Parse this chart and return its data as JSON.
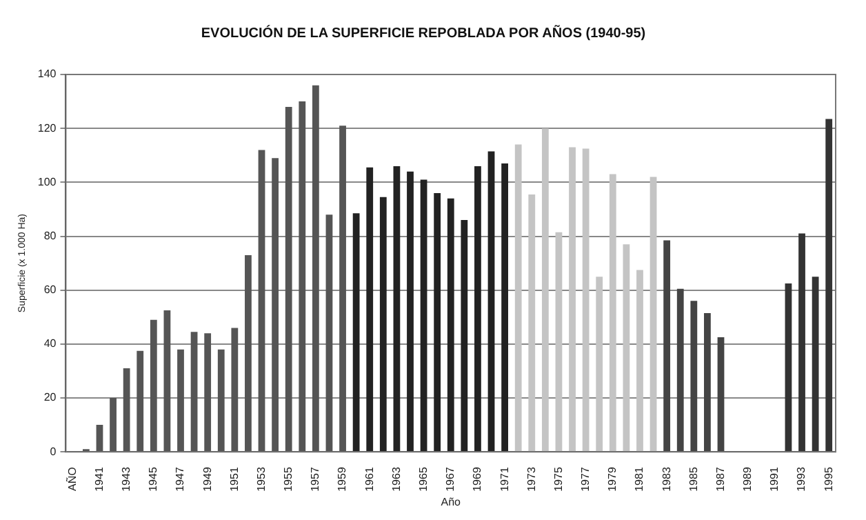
{
  "chart_data": {
    "type": "bar",
    "title": "EVOLUCIÓN DE LA SUPERFICIE REPOBLADA POR AÑOS (1940-95)",
    "xlabel": "Año",
    "ylabel": "Superficie (x 1.000 Ha)",
    "categories": [
      "AÑO",
      null,
      "1941",
      null,
      "1943",
      null,
      "1945",
      null,
      "1947",
      null,
      "1949",
      null,
      "1951",
      null,
      "1953",
      null,
      "1955",
      null,
      "1957",
      null,
      "1959",
      null,
      "1961",
      null,
      "1963",
      null,
      "1965",
      null,
      "1967",
      null,
      "1969",
      null,
      "1971",
      null,
      "1973",
      null,
      "1975",
      null,
      "1977",
      null,
      "1979",
      null,
      "1981",
      null,
      "1983",
      null,
      "1985",
      null,
      "1987",
      null,
      "1989",
      null,
      "1991",
      null,
      "1993",
      null,
      "1995"
    ],
    "values": [
      null,
      1,
      10,
      20,
      31,
      37.5,
      49,
      52.5,
      38,
      44.5,
      44,
      38,
      46,
      73,
      112,
      109,
      128,
      130,
      136,
      88,
      121,
      88.5,
      105.5,
      94.5,
      106,
      104,
      101,
      96,
      94,
      86,
      106,
      111.5,
      107,
      114,
      95.5,
      120,
      81.5,
      113,
      112.5,
      65,
      103,
      77,
      67.5,
      102,
      78.5,
      60.5,
      56,
      51.5,
      42.5,
      null,
      null,
      null,
      null,
      62.5,
      81,
      65,
      123.5
    ],
    "colors": [
      "#555555",
      "#555555",
      "#555555",
      "#555555",
      "#555555",
      "#555555",
      "#555555",
      "#555555",
      "#555555",
      "#555555",
      "#555555",
      "#555555",
      "#555555",
      "#555555",
      "#555555",
      "#555555",
      "#555555",
      "#555555",
      "#555555",
      "#555555",
      "#555555",
      "#222222",
      "#222222",
      "#222222",
      "#222222",
      "#222222",
      "#222222",
      "#222222",
      "#222222",
      "#222222",
      "#222222",
      "#222222",
      "#222222",
      "#c4c4c4",
      "#c4c4c4",
      "#c4c4c4",
      "#c4c4c4",
      "#c4c4c4",
      "#c4c4c4",
      "#c4c4c4",
      "#c4c4c4",
      "#c4c4c4",
      "#c4c4c4",
      "#c4c4c4",
      "#444444",
      "#444444",
      "#444444",
      "#444444",
      "#444444",
      "#444444",
      "#444444",
      "#444444",
      "#444444",
      "#333333",
      "#333333",
      "#333333",
      "#333333"
    ],
    "ylim": [
      0,
      140
    ],
    "yticks": [
      0,
      20,
      40,
      60,
      80,
      100,
      120,
      140
    ],
    "grid": "y",
    "legend": false
  }
}
